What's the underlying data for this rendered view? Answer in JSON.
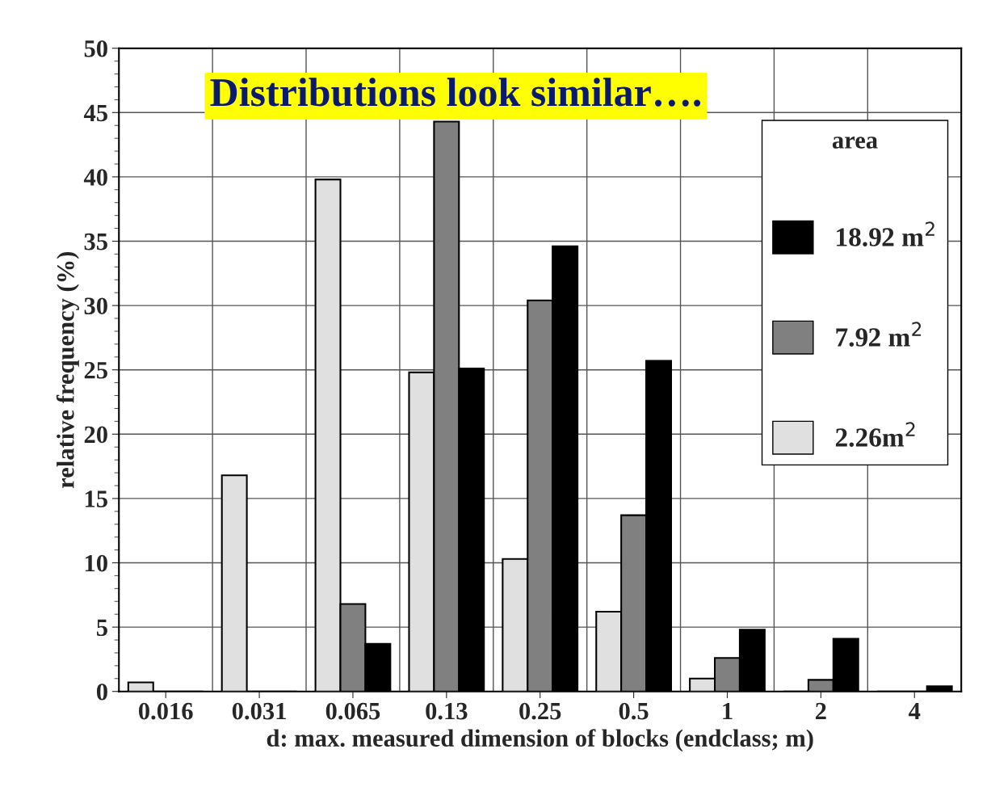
{
  "chart_data": {
    "type": "bar",
    "title": "Distributions look similar….",
    "xlabel": "d: max. measured dimension of blocks (endclass; m)",
    "ylabel": "relative frequency (%)",
    "legend_title": "area",
    "categories": [
      "0.016",
      "0.031",
      "0.065",
      "0.13",
      "0.25",
      "0.5",
      "1",
      "2",
      "4"
    ],
    "series": [
      {
        "name": "2.26m$^{2}$",
        "color": "#e0e0e0",
        "values": [
          0.7,
          16.8,
          39.8,
          24.8,
          10.3,
          6.2,
          1.0,
          0,
          0
        ]
      },
      {
        "name": "7.92 m$^{2}$",
        "color": "#808080",
        "values": [
          0,
          0,
          6.8,
          44.3,
          30.4,
          13.7,
          2.6,
          0.9,
          0
        ]
      },
      {
        "name": "18.92 m$^{2}$",
        "color": "#000000",
        "values": [
          0,
          0,
          3.7,
          25.1,
          34.6,
          25.7,
          4.8,
          4.1,
          0.4
        ]
      }
    ],
    "ylim": [
      0,
      50
    ],
    "yticks": [
      0,
      5,
      10,
      15,
      20,
      25,
      30,
      35,
      40,
      45,
      50
    ],
    "grid": true,
    "legend": "right"
  }
}
